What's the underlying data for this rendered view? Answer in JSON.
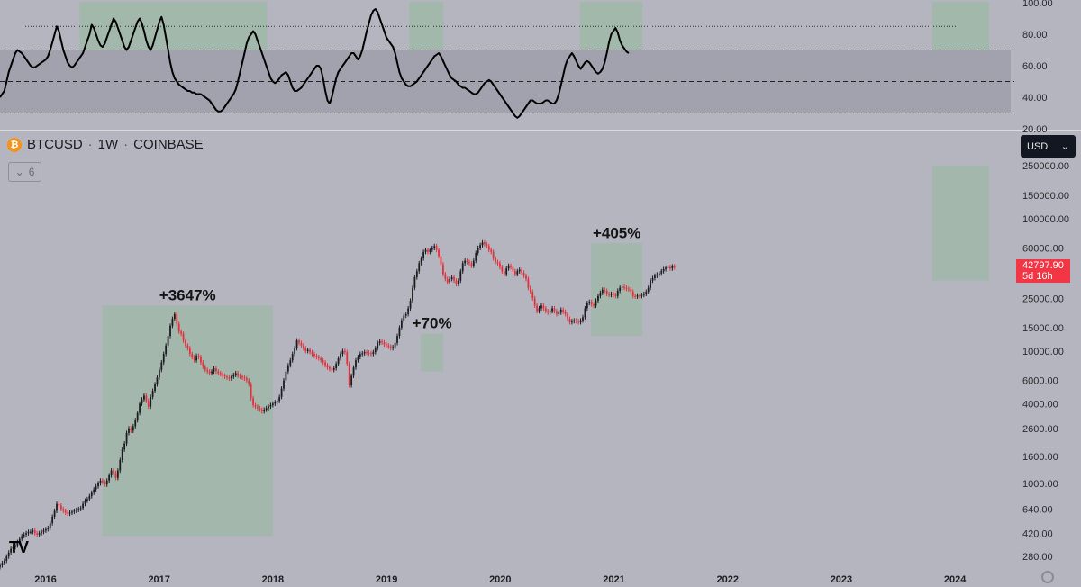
{
  "symbol": {
    "name": "BTCUSD",
    "interval": "1W",
    "exchange": "COINBASE",
    "separator": "·",
    "icon": "bitcoin-icon"
  },
  "collapse_button": {
    "count": "6",
    "icon": "chevron-down-icon"
  },
  "currency_selector": {
    "value": "USD",
    "icon": "chevron-down-icon"
  },
  "price_tag": {
    "price": "42797.90",
    "countdown": "5d 16h"
  },
  "logo": {
    "text": "TV"
  },
  "colors": {
    "background": "#b4b5bf",
    "up_candle": "#1c1c20",
    "down_candle": "#e0323c",
    "highlight_box": "#9fb8a6",
    "oscillator_band": "#9d9eaa",
    "price_tag": "#f23645"
  },
  "chart_data": [
    {
      "type": "line",
      "name": "oscillator",
      "y_ticks": [
        "20.00",
        "40.00",
        "60.00",
        "80.00",
        "100.00"
      ],
      "ylim": [
        20,
        100
      ],
      "levels": {
        "dotted": 85,
        "dashed": [
          30,
          50,
          70
        ]
      },
      "band": [
        30,
        70
      ],
      "x_start": 2015.6,
      "x_step": 0.0192,
      "values": [
        40,
        42,
        44,
        50,
        56,
        60,
        64,
        68,
        70,
        69,
        68,
        66,
        64,
        62,
        60,
        59,
        59,
        60,
        61,
        62,
        63,
        64,
        66,
        70,
        75,
        80,
        85,
        82,
        76,
        70,
        66,
        62,
        60,
        59,
        60,
        62,
        64,
        66,
        68,
        72,
        76,
        80,
        86,
        84,
        80,
        76,
        73,
        72,
        74,
        78,
        82,
        86,
        90,
        88,
        84,
        80,
        76,
        72,
        70,
        72,
        76,
        80,
        84,
        88,
        90,
        87,
        82,
        76,
        72,
        70,
        73,
        78,
        83,
        88,
        91,
        86,
        78,
        70,
        62,
        56,
        52,
        50,
        48,
        47,
        46,
        45,
        44,
        44,
        43,
        43,
        42,
        42,
        42,
        41,
        40,
        39,
        38,
        36,
        34,
        32,
        31,
        31,
        32,
        34,
        36,
        38,
        40,
        42,
        45,
        50,
        56,
        62,
        68,
        74,
        78,
        80,
        82,
        80,
        76,
        72,
        68,
        64,
        60,
        56,
        52,
        50,
        49,
        50,
        52,
        54,
        55,
        56,
        54,
        50,
        46,
        44,
        44,
        45,
        46,
        48,
        50,
        52,
        54,
        56,
        58,
        60,
        60,
        58,
        52,
        44,
        38,
        36,
        40,
        46,
        52,
        56,
        58,
        60,
        62,
        64,
        66,
        68,
        68,
        66,
        64,
        66,
        70,
        76,
        82,
        87,
        92,
        95,
        96,
        94,
        90,
        86,
        82,
        78,
        76,
        74,
        72,
        68,
        62,
        56,
        52,
        50,
        48,
        47,
        47,
        48,
        49,
        50,
        52,
        54,
        56,
        58,
        60,
        62,
        64,
        66,
        67,
        68,
        66,
        63,
        60,
        57,
        54,
        52,
        51,
        50,
        48,
        47,
        46,
        46,
        45,
        44,
        43,
        42,
        42,
        43,
        45,
        47,
        49,
        50,
        51,
        50,
        48,
        46,
        44,
        42,
        40,
        38,
        36,
        34,
        32,
        30,
        28,
        27,
        28,
        30,
        32,
        34,
        36,
        38,
        38,
        37,
        36,
        36,
        36,
        37,
        38,
        38,
        37,
        36,
        36,
        38,
        42,
        48,
        54,
        60,
        64,
        66,
        68,
        66,
        63,
        60,
        58,
        60,
        62,
        63,
        62,
        60,
        58,
        56,
        55,
        56,
        58,
        62,
        68,
        75,
        80,
        82,
        84,
        81,
        76,
        73,
        71,
        69,
        68
      ]
    },
    {
      "type": "candlestick",
      "name": "BTCUSD",
      "scale": "log",
      "y_ticks": [
        "280.00",
        "420.00",
        "640.00",
        "1000.00",
        "1600.00",
        "2600.00",
        "4000.00",
        "6000.00",
        "10000.00",
        "15000.00",
        "25000.00",
        "60000.00",
        "100000.00",
        "150000.00",
        "250000.00"
      ],
      "ylim": [
        240,
        280000
      ],
      "x_ticks": [
        "2016",
        "2017",
        "2018",
        "2019",
        "2020",
        "2021",
        "2022",
        "2023",
        "2024"
      ],
      "xlim": [
        2015.6,
        2024.3
      ],
      "x_start": 2015.6,
      "x_step": 0.0192,
      "closes": [
        240,
        250,
        260,
        280,
        300,
        320,
        330,
        340,
        360,
        380,
        400,
        410,
        420,
        430,
        430,
        440,
        420,
        410,
        420,
        430,
        440,
        450,
        460,
        500,
        560,
        620,
        700,
        680,
        640,
        620,
        600,
        590,
        600,
        610,
        620,
        630,
        640,
        650,
        700,
        740,
        760,
        800,
        850,
        900,
        950,
        1000,
        1050,
        1020,
        980,
        1050,
        1150,
        1250,
        1200,
        1100,
        1250,
        1500,
        1800,
        2000,
        2400,
        2600,
        2500,
        2700,
        3000,
        3400,
        4000,
        4300,
        4600,
        4200,
        3800,
        4500,
        5000,
        5600,
        6300,
        7200,
        8200,
        9500,
        11000,
        13000,
        15500,
        17500,
        19000,
        16000,
        14000,
        13500,
        12000,
        11000,
        10500,
        9500,
        9000,
        8500,
        9200,
        9000,
        8200,
        7600,
        7200,
        7000,
        6800,
        7000,
        7400,
        7000,
        6800,
        6700,
        6500,
        6400,
        6300,
        6200,
        6400,
        6600,
        6800,
        6500,
        6400,
        6300,
        6200,
        6000,
        5600,
        4400,
        3900,
        3800,
        3700,
        3600,
        3500,
        3600,
        3700,
        3800,
        3900,
        4000,
        4100,
        4200,
        4500,
        5200,
        6000,
        7000,
        7800,
        8500,
        9500,
        10500,
        12000,
        11500,
        11000,
        10500,
        10000,
        10200,
        9800,
        9500,
        9200,
        9000,
        8800,
        8500,
        8200,
        7800,
        7500,
        7300,
        7200,
        7400,
        8000,
        8800,
        9500,
        10000,
        9800,
        8000,
        5500,
        6500,
        7500,
        8500,
        9000,
        9500,
        9600,
        9800,
        9700,
        9600,
        9500,
        9800,
        10500,
        11500,
        11800,
        11600,
        11200,
        11000,
        10800,
        10500,
        10700,
        11500,
        13000,
        15000,
        17000,
        18500,
        19000,
        21000,
        24000,
        30000,
        36000,
        40000,
        46000,
        50000,
        56000,
        58000,
        56000,
        58000,
        60000,
        62000,
        58000,
        52000,
        45000,
        38000,
        35000,
        33000,
        35000,
        36000,
        34000,
        32000,
        34000,
        40000,
        46000,
        48000,
        47000,
        46000,
        44000,
        48000,
        55000,
        60000,
        63000,
        66000,
        64000,
        62000,
        58000,
        56000,
        50000,
        47000,
        46000,
        43000,
        40000,
        38000,
        42000,
        44000,
        43000,
        40000,
        38000,
        40000,
        41000,
        39000,
        37000,
        35000,
        30000,
        28000,
        25000,
        22000,
        20000,
        21000,
        22000,
        21000,
        20000,
        19500,
        20000,
        21000,
        20000,
        19000,
        19500,
        20500,
        19800,
        19000,
        17500,
        16500,
        16800,
        17000,
        16800,
        16500,
        17000,
        18000,
        21000,
        23000,
        23500,
        22500,
        22000,
        24000,
        26000,
        27500,
        29000,
        28500,
        27000,
        26500,
        27000,
        26500,
        26000,
        28500,
        30000,
        30500,
        30000,
        29500,
        29200,
        28000,
        26000,
        25800,
        26200,
        26000,
        26500,
        27000,
        28000,
        30000,
        34000,
        35500,
        37000,
        37800,
        38500,
        40000,
        41500,
        42500,
        43000,
        42000,
        43500,
        42800
      ],
      "annotations": [
        {
          "label": "+3647%",
          "x0": 2016.5,
          "x1": 2018.0,
          "y0": 400,
          "y1": 22000
        },
        {
          "label": "+70%",
          "x0": 2019.3,
          "x1": 2019.5,
          "y0": 7000,
          "y1": 13500
        },
        {
          "label": "+405%",
          "x0": 2020.8,
          "x1": 2021.25,
          "y0": 13000,
          "y1": 65000
        },
        {
          "label": "",
          "x0": 2023.8,
          "x1": 2024.3,
          "y0": 34000,
          "y1": 250000
        }
      ],
      "oscillator_highlights": [
        {
          "x0": 2016.3,
          "x1": 2017.95
        },
        {
          "x0": 2019.2,
          "x1": 2019.5
        },
        {
          "x0": 2020.7,
          "x1": 2021.25
        },
        {
          "x0": 2023.8,
          "x1": 2024.3
        }
      ]
    }
  ]
}
